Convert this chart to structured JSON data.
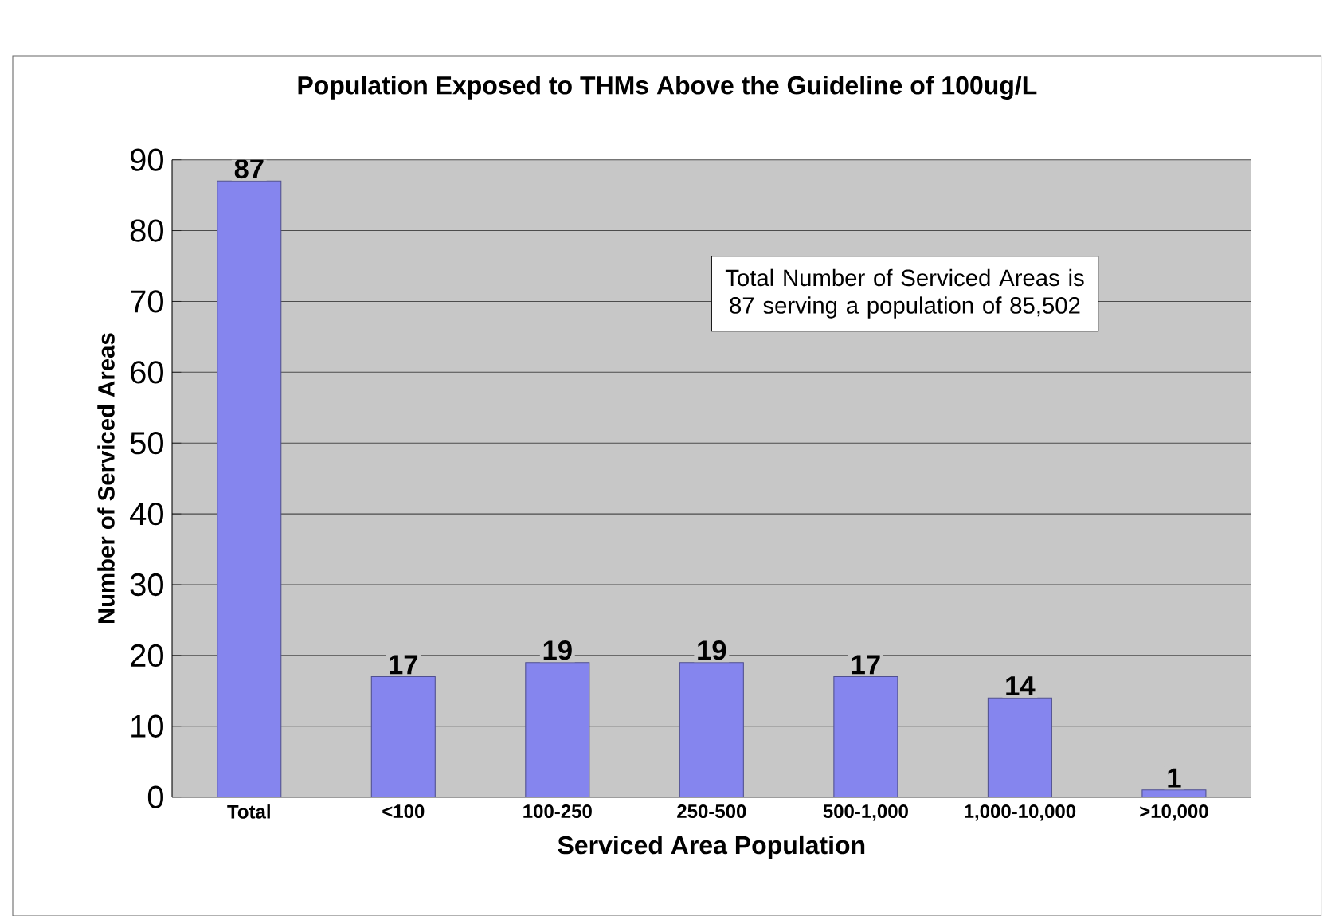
{
  "chart_data": {
    "type": "bar",
    "title": "Population Exposed to THMs Above the Guideline of 100ug/L",
    "xlabel": "Serviced Area Population",
    "ylabel": "Number of Serviced Areas",
    "categories": [
      "Total",
      "<100",
      "100-250",
      "250-500",
      "500-1,000",
      "1,000-10,000",
      ">10,000"
    ],
    "values": [
      87,
      17,
      19,
      19,
      17,
      14,
      1
    ],
    "color": "#8585ee",
    "ylim": [
      0,
      90
    ],
    "yticks": [
      0,
      10,
      20,
      30,
      40,
      50,
      60,
      70,
      80,
      90
    ],
    "grid": "y",
    "data_labels": true,
    "annotations": [
      "Total Number of Serviced Areas is 87 serving a population of 85,502"
    ]
  }
}
